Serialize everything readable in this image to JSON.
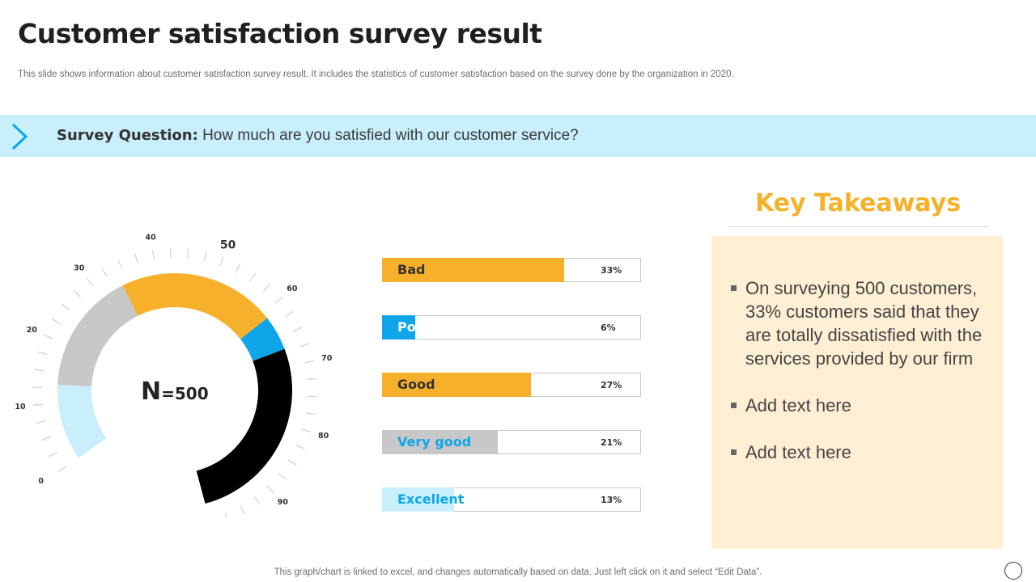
{
  "header": {
    "title": "Customer satisfaction survey result",
    "subtitle": "This slide shows information about customer satisfaction survey result. It includes the statistics of customer satisfaction based on the survey done by the organization in 2020."
  },
  "question": {
    "label": "Survey Question",
    "separator": ":",
    "text": "How much are you satisfied with our customer service?"
  },
  "gauge": {
    "n_symbol": "N",
    "n_value": "=500"
  },
  "chart_data": [
    {
      "type": "gauge",
      "title": "",
      "scale": {
        "min": 0,
        "max": 100,
        "major_ticks": [
          0,
          10,
          20,
          30,
          40,
          50,
          60,
          70,
          80,
          90,
          100
        ]
      },
      "segments": [
        {
          "name": "Excellent",
          "from": 0,
          "to": 13,
          "color": "#c9effc"
        },
        {
          "name": "Very good",
          "from": 13,
          "to": 34,
          "color": "#c8c8c8"
        },
        {
          "name": "Good",
          "from": 34,
          "to": 61,
          "color": "#f7b02b"
        },
        {
          "name": "Poor",
          "from": 61,
          "to": 67,
          "color": "#0ea5e9"
        },
        {
          "name": "Bad",
          "from": 67,
          "to": 100,
          "color": "#000000"
        }
      ]
    },
    {
      "type": "bar",
      "orientation": "horizontal",
      "categories": [
        "Bad",
        "Poor",
        "Good",
        "Very good",
        "Excellent"
      ],
      "values": [
        33,
        6,
        27,
        21,
        13
      ],
      "value_labels": [
        "33%",
        "6%",
        "27%",
        "21%",
        "13%"
      ],
      "xlim": [
        0,
        47
      ],
      "colors": [
        "#f7b02b",
        "#0ea5e9",
        "#f7b02b",
        "#c8c8c8",
        "#c9effc"
      ],
      "label_colors": [
        "#333333",
        "#ffffff",
        "#333333",
        "#0ea5e9",
        "#0ea5e9"
      ]
    }
  ],
  "takeaways": {
    "heading": "Key Takeaways",
    "items": [
      "On surveying 500 customers, 33% customers said that they are totally dissatisfied with the services provided by our firm",
      "Add text here",
      "Add text here"
    ]
  },
  "footer": {
    "note": "This graph/chart is linked to excel,  and changes automatically based on data. Just left click on it and select “Edit Data”."
  },
  "colors": {
    "accent_orange": "#f4b129",
    "accent_blue": "#0ea5e9",
    "question_bg": "#c9effc",
    "takeaway_bg": "#feefd4"
  }
}
